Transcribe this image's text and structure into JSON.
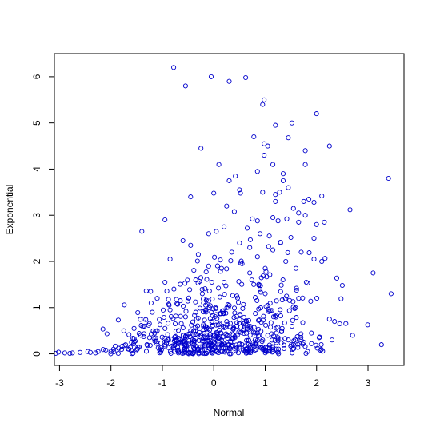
{
  "chart_data": {
    "type": "scatter",
    "title": "",
    "xlabel": "Normal",
    "ylabel": "Exponential",
    "xlim": [
      -3.1,
      3.7
    ],
    "ylim": [
      -0.25,
      6.5
    ],
    "x_ticks": [
      -3,
      -2,
      -1,
      0,
      1,
      2,
      3
    ],
    "y_ticks": [
      0,
      1,
      2,
      3,
      4,
      5,
      6
    ],
    "x_tick_labels": [
      "-3",
      "-2",
      "-1",
      "0",
      "1",
      "2",
      "3"
    ],
    "y_tick_labels": [
      "0",
      "1",
      "2",
      "3",
      "4",
      "5",
      "6"
    ],
    "grid": false,
    "point_color": "#0000cc",
    "marker": "open-circle",
    "series": [
      {
        "points": [
          [
            -0.78,
            6.2
          ],
          [
            -0.05,
            6.0
          ],
          [
            0.62,
            5.98
          ],
          [
            0.3,
            5.9
          ],
          [
            -0.55,
            5.8
          ],
          [
            0.98,
            5.5
          ],
          [
            0.95,
            5.4
          ],
          [
            2.0,
            5.2
          ],
          [
            1.52,
            5.0
          ],
          [
            1.2,
            4.95
          ],
          [
            0.78,
            4.7
          ],
          [
            1.45,
            4.68
          ],
          [
            0.98,
            4.55
          ],
          [
            1.05,
            4.5
          ],
          [
            2.25,
            4.5
          ],
          [
            1.78,
            4.4
          ],
          [
            -0.25,
            4.45
          ],
          [
            0.98,
            4.3
          ],
          [
            0.1,
            4.1
          ],
          [
            1.15,
            4.1
          ],
          [
            1.78,
            4.1
          ],
          [
            0.85,
            3.95
          ],
          [
            1.35,
            3.9
          ],
          [
            0.42,
            3.85
          ],
          [
            3.4,
            3.8
          ],
          [
            0.3,
            3.75
          ],
          [
            1.35,
            3.75
          ],
          [
            1.45,
            3.6
          ],
          [
            0.95,
            3.5
          ],
          [
            0.5,
            3.55
          ],
          [
            0.0,
            3.48
          ],
          [
            1.28,
            3.5
          ],
          [
            0.52,
            3.48
          ],
          [
            1.2,
            3.45
          ],
          [
            2.1,
            3.42
          ],
          [
            -0.45,
            3.4
          ],
          [
            1.85,
            3.35
          ],
          [
            1.75,
            3.3
          ],
          [
            1.95,
            3.28
          ],
          [
            1.2,
            3.3
          ],
          [
            1.55,
            3.15
          ],
          [
            1.65,
            3.05
          ],
          [
            0.25,
            3.2
          ],
          [
            0.4,
            3.08
          ],
          [
            1.78,
            3.0
          ],
          [
            2.65,
            3.12
          ],
          [
            1.15,
            2.95
          ],
          [
            1.42,
            2.92
          ],
          [
            1.25,
            2.88
          ],
          [
            -0.95,
            2.9
          ],
          [
            0.75,
            2.92
          ],
          [
            0.85,
            2.88
          ],
          [
            1.65,
            2.85
          ],
          [
            2.15,
            2.85
          ],
          [
            2.0,
            2.8
          ],
          [
            0.2,
            2.75
          ],
          [
            0.65,
            2.72
          ],
          [
            0.05,
            2.65
          ],
          [
            -0.1,
            2.6
          ],
          [
            -1.4,
            2.65
          ],
          [
            0.9,
            2.6
          ],
          [
            1.08,
            2.55
          ],
          [
            1.5,
            2.52
          ],
          [
            1.95,
            2.5
          ],
          [
            -0.6,
            2.45
          ],
          [
            -0.45,
            2.35
          ],
          [
            0.5,
            2.4
          ],
          [
            1.3,
            2.4
          ],
          [
            0.7,
            2.3
          ],
          [
            0.35,
            2.2
          ],
          [
            1.7,
            2.2
          ],
          [
            1.15,
            2.25
          ],
          [
            -0.3,
            2.15
          ],
          [
            0.85,
            2.1
          ],
          [
            1.95,
            2.05
          ],
          [
            2.1,
            2.0
          ],
          [
            -0.85,
            2.05
          ],
          [
            1.4,
            2.0
          ],
          [
            0.55,
            1.95
          ],
          [
            -0.1,
            1.9
          ],
          [
            0.15,
            1.85
          ],
          [
            1.0,
            1.85
          ],
          [
            1.6,
            1.85
          ],
          [
            3.1,
            1.75
          ],
          [
            0.7,
            1.75
          ],
          [
            -0.95,
            1.55
          ],
          [
            -0.35,
            1.6
          ],
          [
            0.2,
            1.55
          ],
          [
            1.8,
            1.55
          ],
          [
            2.5,
            1.48
          ],
          [
            3.45,
            1.3
          ],
          [
            0.9,
            1.4
          ],
          [
            1.3,
            1.35
          ],
          [
            -1.1,
            1.2
          ],
          [
            1.0,
            1.3
          ],
          [
            0.45,
            1.25
          ],
          [
            -0.65,
            1.15
          ],
          [
            1.65,
            1.2
          ],
          [
            -0.2,
            1.1
          ],
          [
            0.3,
            1.05
          ],
          [
            2.25,
            0.75
          ],
          [
            2.35,
            0.7
          ],
          [
            2.45,
            0.65
          ],
          [
            2.7,
            0.4
          ],
          [
            2.3,
            0.3
          ],
          [
            2.05,
            0.35
          ],
          [
            1.9,
            0.45
          ],
          [
            1.75,
            0.25
          ],
          [
            1.55,
            0.2
          ],
          [
            0.95,
            0.3
          ],
          [
            -1.75,
            0.5
          ],
          [
            -1.55,
            0.55
          ],
          [
            -1.35,
            0.6
          ],
          [
            -1.6,
            0.25
          ],
          [
            -1.95,
            0.1
          ],
          [
            -2.1,
            0.08
          ],
          [
            -2.25,
            0.05
          ],
          [
            -2.45,
            0.05
          ],
          [
            -2.6,
            0.03
          ],
          [
            -2.75,
            0.02
          ],
          [
            -2.8,
            0.01
          ],
          [
            -2.9,
            0.02
          ],
          [
            -2.3,
            0.02
          ],
          [
            -2.4,
            0.03
          ],
          [
            -2.0,
            0.05
          ],
          [
            -1.85,
            0.12
          ],
          [
            -1.65,
            0.1
          ],
          [
            -1.45,
            0.15
          ],
          [
            -1.3,
            0.2
          ],
          [
            -1.25,
            0.35
          ],
          [
            -1.15,
            0.45
          ],
          [
            -0.95,
            0.55
          ],
          [
            -0.75,
            0.65
          ],
          [
            -0.55,
            0.8
          ],
          [
            -0.35,
            0.9
          ],
          [
            -0.15,
            0.95
          ],
          [
            0.05,
            0.85
          ],
          [
            0.25,
            0.7
          ],
          [
            0.45,
            0.6
          ],
          [
            0.65,
            0.55
          ],
          [
            0.85,
            0.45
          ],
          [
            1.05,
            0.4
          ],
          [
            1.25,
            0.35
          ],
          [
            1.45,
            0.3
          ],
          [
            -0.85,
            0.95
          ],
          [
            -0.45,
            0.5
          ],
          [
            -0.25,
            0.4
          ],
          [
            0.15,
            0.3
          ],
          [
            0.35,
            0.25
          ],
          [
            0.55,
            0.2
          ],
          [
            -0.65,
            0.3
          ],
          [
            -0.05,
            0.15
          ],
          [
            0.75,
            0.15
          ],
          [
            1.15,
            0.1
          ]
        ]
      }
    ],
    "dense_cluster": {
      "x_center": 0.1,
      "x_spread": 1.0,
      "note_free": true
    }
  }
}
